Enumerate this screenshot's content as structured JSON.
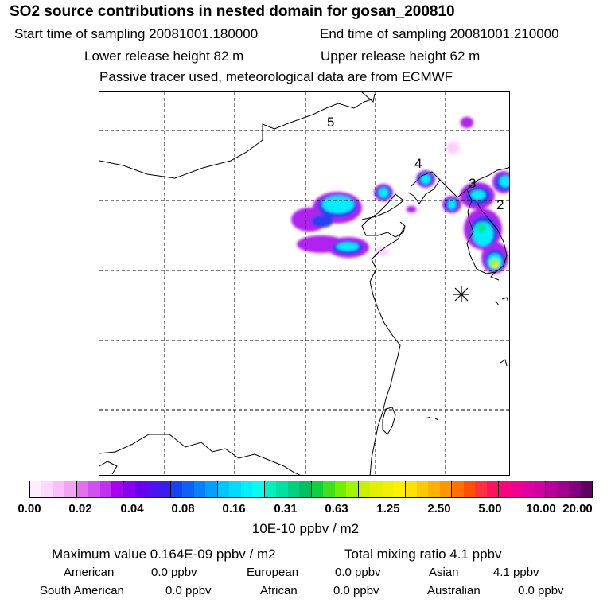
{
  "title": "SO2 source contributions in nested domain for gosan_200810",
  "sampling": {
    "start": "Start time of sampling 20081001.180000",
    "end": "End time of sampling 20081001.210000"
  },
  "release": {
    "lower": "Lower release height   82 m",
    "upper": "Upper release height   62 m"
  },
  "note": "Passive tracer used, meteorological data are from ECMWF",
  "map_labels": [
    "5",
    "4",
    "3",
    "2"
  ],
  "colorbar": {
    "ticks": [
      "0.00",
      "0.02",
      "0.04",
      "0.08",
      "0.16",
      "0.31",
      "0.63",
      "1.25",
      "2.50",
      "5.00",
      "10.00",
      "20.00"
    ],
    "units": "10E-10 ppbv / m2",
    "colors": [
      "#ffeeff",
      "#ffd8ff",
      "#fbbef9",
      "#f3a3f3",
      "#e070f0",
      "#d050f0",
      "#c030f0",
      "#a800f0",
      "#8800f0",
      "#6a00f0",
      "#5010f0",
      "#3a1cf0",
      "#1840f4",
      "#1060f8",
      "#0880fc",
      "#00a0ff",
      "#00c8ff",
      "#00dcff",
      "#00f0ff",
      "#00ffee",
      "#00f0c0",
      "#00e0a0",
      "#00d080",
      "#00c060",
      "#10d040",
      "#40e020",
      "#70f000",
      "#a0f800",
      "#c8f000",
      "#e0f000",
      "#f0f000",
      "#fff000",
      "#ffe000",
      "#ffc800",
      "#ffb000",
      "#ff9800",
      "#ff7000",
      "#ff5000",
      "#ff3040",
      "#ff1060",
      "#ff0080",
      "#f00090",
      "#e000a0",
      "#d000a0",
      "#b80098",
      "#a00090",
      "#800080",
      "#600060"
    ]
  },
  "stats": {
    "maximum": "Maximum value  0.164E-09 ppbv / m2",
    "total": "Total mixing ratio       4.1 ppbv"
  },
  "regions": [
    {
      "name": "American",
      "value": "0.0 ppbv"
    },
    {
      "name": "European",
      "value": "0.0 ppbv"
    },
    {
      "name": "Asian",
      "value": "4.1 ppbv"
    },
    {
      "name": "South American",
      "value": "0.0 ppbv"
    },
    {
      "name": "African",
      "value": "0.0 ppbv"
    },
    {
      "name": "Australian",
      "value": "0.0 ppbv"
    }
  ]
}
